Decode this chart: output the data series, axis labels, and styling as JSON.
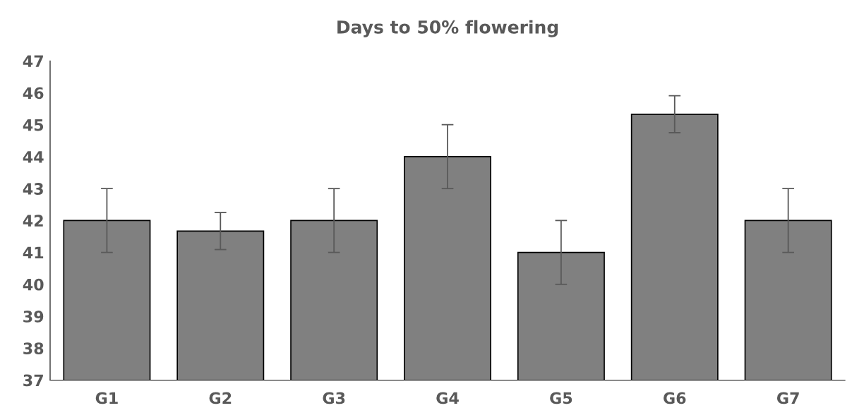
{
  "chart_data": {
    "type": "bar",
    "title": "Days to 50% flowering",
    "categories": [
      "G1",
      "G2",
      "G3",
      "G4",
      "G5",
      "G6",
      "G7"
    ],
    "values": [
      42,
      41.67,
      42,
      44,
      41,
      45.33,
      42
    ],
    "errors": [
      1,
      0.58,
      1,
      1,
      1,
      0.58,
      1
    ],
    "color": "#808080",
    "ylim": [
      37,
      47
    ],
    "yticks": [
      37,
      38,
      39,
      40,
      41,
      42,
      43,
      44,
      45,
      46,
      47
    ],
    "grid": false,
    "legend": false
  }
}
